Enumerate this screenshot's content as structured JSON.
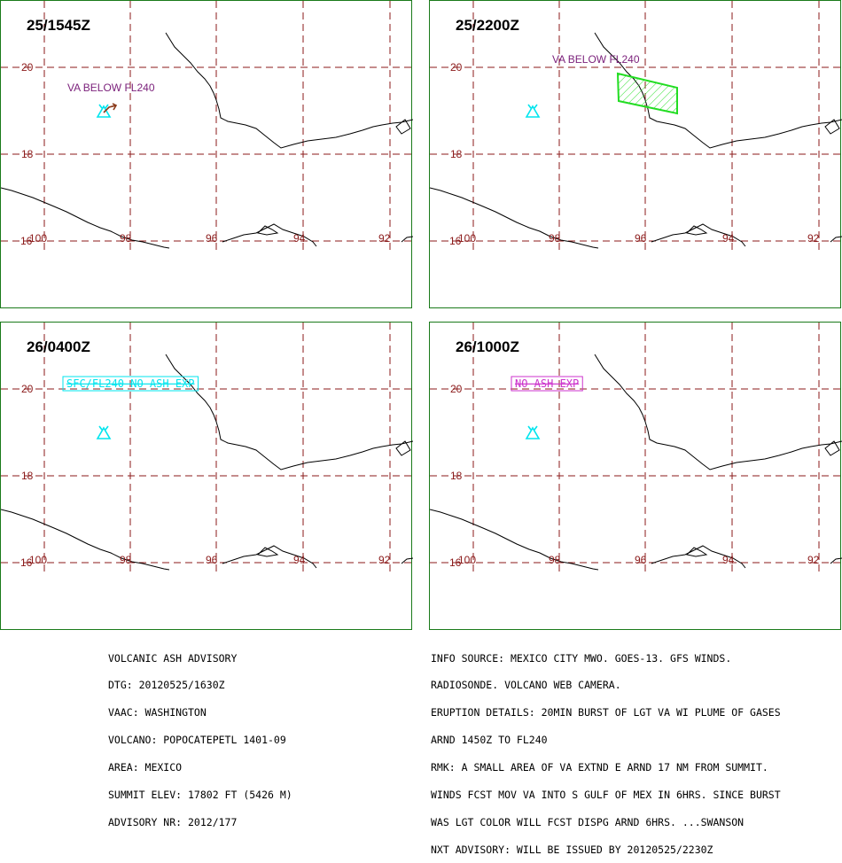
{
  "colors": {
    "grid": "#8b1a1a",
    "coast": "#000000",
    "volcano": "#00e5ee",
    "va_text": "#7a1f7a",
    "ash_area": "#22dd22",
    "box_sfc": "#00e5ee",
    "box_noash": "#cc33cc",
    "panel_border": "#1a7a1a"
  },
  "axes": {
    "lon_labels": [
      "100",
      "98",
      "96",
      "94",
      "92"
    ],
    "lat_labels": [
      "20",
      "18",
      "16"
    ]
  },
  "panels": [
    {
      "title": "25/1545Z",
      "label": "VA BELOW FL240",
      "label_style": "text"
    },
    {
      "title": "25/2200Z",
      "label": "VA BELOW FL240",
      "label_style": "text"
    },
    {
      "title": "26/0400Z",
      "label": "SFC/FL240 NO ASH EXP",
      "label_style": "box_sfc"
    },
    {
      "title": "26/1000Z",
      "label": "NO ASH EXP",
      "label_style": "box_noash"
    }
  ],
  "advisory": {
    "left": [
      "VOLCANIC ASH ADVISORY",
      "DTG: 20120525/1630Z",
      "VAAC: WASHINGTON",
      "VOLCANO: POPOCATEPETL 1401-09",
      "AREA: MEXICO",
      "SUMMIT ELEV: 17802 FT (5426 M)",
      "ADVISORY NR: 2012/177"
    ],
    "right": [
      "INFO SOURCE: MEXICO CITY MWO. GOES-13. GFS WINDS.",
      "RADIOSONDE. VOLCANO WEB CAMERA.",
      "ERUPTION DETAILS: 20MIN BURST OF LGT VA WI PLUME OF GASES",
      "ARND 1450Z TO FL240",
      "RMK: A SMALL AREA OF VA EXTND E ARND 17 NM FROM SUMMIT.",
      "WINDS FCST MOV VA INTO S GULF OF MEX IN 6HRS. SINCE BURST",
      "WAS LGT COLOR WILL FCST DISPG ARND 6HRS. ...SWANSON",
      "NXT ADVISORY: WILL BE ISSUED BY 20120525/2230Z"
    ]
  }
}
